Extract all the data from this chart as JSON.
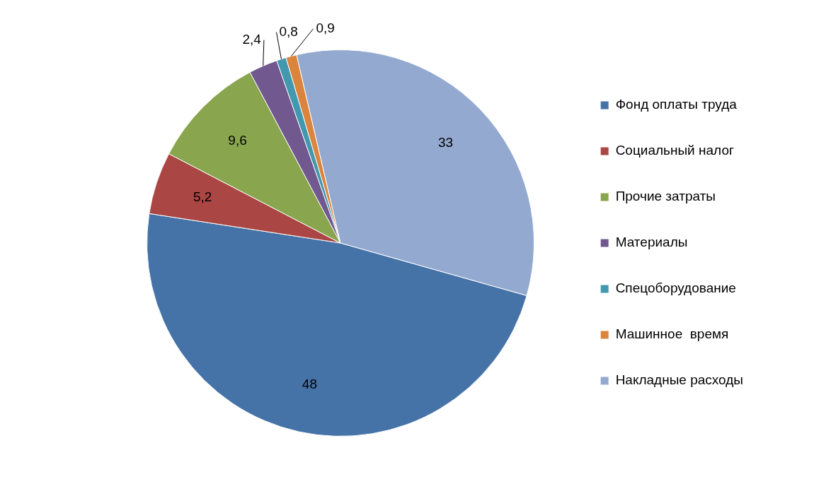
{
  "chart_data": {
    "type": "pie",
    "categories": [
      "Фонд оплаты труда",
      "Социальный налог",
      "Прочие затраты",
      "Материалы",
      "Спецоборудование",
      "Машинное  время",
      "Накладные расходы"
    ],
    "values": [
      48,
      5.2,
      9.6,
      2.4,
      0.8,
      0.9,
      33
    ],
    "value_labels": [
      "48",
      "5,2",
      "9,6",
      "2,4",
      "0,8",
      "0,9",
      "33"
    ],
    "colors": [
      "#4572a7",
      "#aa4643",
      "#89a54e",
      "#71588f",
      "#4198af",
      "#db843d",
      "#93a9cf"
    ],
    "legend": "right"
  }
}
